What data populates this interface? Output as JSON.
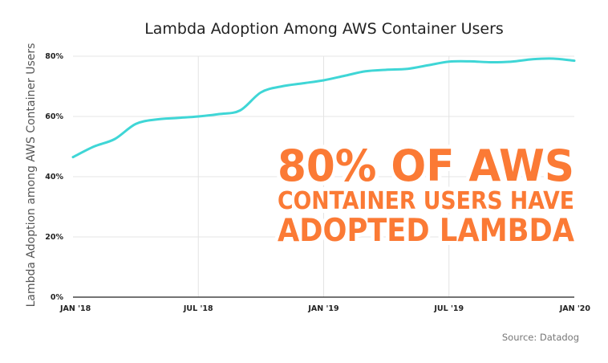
{
  "chart_data": {
    "type": "line",
    "title": "Lambda Adoption Among AWS Container Users",
    "xlabel": "",
    "ylabel": "Lambda Adoption among AWS Container Users",
    "x_ticks": [
      "JAN '18",
      "JUL '18",
      "JAN '19",
      "JUL '19",
      "JAN '20"
    ],
    "y_ticks": [
      "0%",
      "20%",
      "40%",
      "60%",
      "80%"
    ],
    "ylim": [
      0,
      80
    ],
    "xlim": [
      "2018-01",
      "2020-01"
    ],
    "grid": true,
    "series": [
      {
        "x": [
          "2018-01",
          "2018-02",
          "2018-03",
          "2018-04",
          "2018-05",
          "2018-06",
          "2018-07",
          "2018-08",
          "2018-09",
          "2018-10",
          "2018-11",
          "2018-12",
          "2019-01",
          "2019-02",
          "2019-03",
          "2019-04",
          "2019-05",
          "2019-06",
          "2019-07",
          "2019-08",
          "2019-09",
          "2019-10",
          "2019-11",
          "2019-12",
          "2020-01"
        ],
        "values": [
          46.5,
          50.0,
          52.5,
          57.5,
          59.0,
          59.5,
          60.0,
          60.8,
          62.0,
          68.0,
          70.0,
          71.0,
          72.0,
          73.5,
          75.0,
          75.5,
          75.8,
          77.0,
          78.2,
          78.3,
          78.0,
          78.2,
          79.0,
          79.2,
          78.5
        ]
      }
    ],
    "annotation": [
      "80% OF AWS",
      "CONTAINER USERS HAVE",
      "ADOPTED LAMBDA"
    ],
    "source": "Source: Datadog",
    "colors": {
      "line": "#3fd6d6",
      "annotation": "#fb7a35",
      "axis": "#222222",
      "grid": "#e4e4e4"
    }
  }
}
